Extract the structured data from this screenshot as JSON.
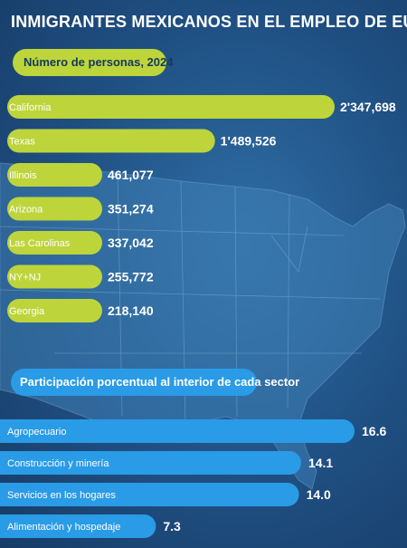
{
  "header": {
    "title": "INMIGRANTES MEXICANOS EN EL EMPLEO DE EU"
  },
  "colors": {
    "background": "#1f4f82",
    "green_bar": "#bdd53a",
    "blue_bar": "#2a9be6",
    "text": "#ffffff"
  },
  "chart_data": [
    {
      "type": "bar",
      "orientation": "horizontal",
      "title": "Número de personas, 2024",
      "categories": [
        "California",
        "Texas",
        "Illinois",
        "Arizona",
        "Las Carolinas",
        "NY+NJ",
        "Georgia"
      ],
      "values": [
        2347698,
        1489526,
        461077,
        351274,
        337042,
        255772,
        218140
      ],
      "value_labels": [
        "2'347,698",
        "1'489,526",
        "461,077",
        "351,274",
        "337,042",
        "255,772",
        "218,140"
      ]
    },
    {
      "type": "bar",
      "orientation": "horizontal",
      "title": "Participación porcentual al interior de cada sector",
      "categories": [
        "Agropecuario",
        "Construcción y minería",
        "Servicios en los hogares",
        "Alimentación y hospedaje"
      ],
      "values": [
        16.6,
        14.1,
        14.0,
        7.3
      ],
      "value_labels": [
        "16.6",
        "14.1",
        "14.0",
        "7.3"
      ]
    }
  ]
}
